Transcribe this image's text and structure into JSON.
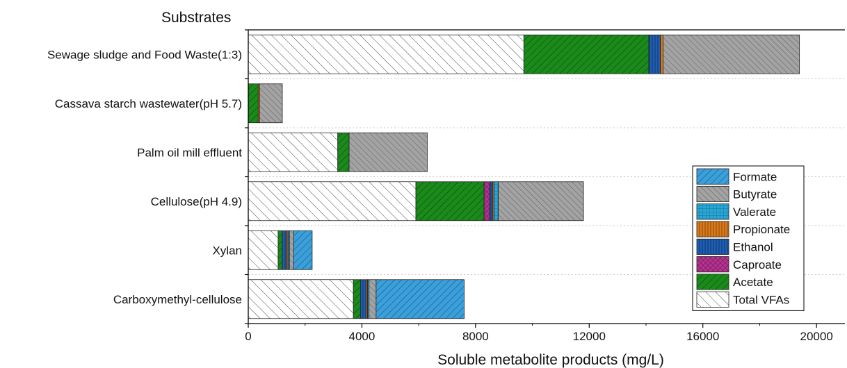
{
  "chart_data": {
    "type": "bar",
    "orientation": "horizontal",
    "stacked": true,
    "title": "",
    "ylabel": "Substrates",
    "xlabel": "Soluble metabolite products (mg/L)",
    "xlim": [
      0,
      21000
    ],
    "xticks": [
      0,
      4000,
      8000,
      12000,
      16000,
      20000
    ],
    "grid": "horizontal dotted",
    "legend_position": "right",
    "categories": [
      "Sewage sludge and Food Waste(1:3)",
      "Cassava starch wastewater(pH 5.7)",
      "Palm oil mill effluent",
      "Cellulose(pH 4.9)",
      "Xylan",
      "Carboxymethyl-cellulose"
    ],
    "stack_order": [
      "Total VFAs",
      "Acetate",
      "Caproate",
      "Ethanol",
      "Propionate",
      "Valerate",
      "Butyrate",
      "Formate"
    ],
    "legend_order": [
      "Formate",
      "Butyrate",
      "Valerate",
      "Propionate",
      "Ethanol",
      "Caproate",
      "Acetate",
      "Total VFAs"
    ],
    "series": [
      {
        "name": "Total VFAs",
        "color": "#ffffff",
        "pattern": "diag-sparse",
        "values": [
          9700,
          0,
          3150,
          5900,
          1050,
          3700
        ]
      },
      {
        "name": "Acetate",
        "color": "#1a8a1a",
        "pattern": "back-diag",
        "values": [
          4400,
          350,
          400,
          2400,
          150,
          250
        ]
      },
      {
        "name": "Caproate",
        "color": "#b5338f",
        "pattern": "cross",
        "values": [
          0,
          0,
          0,
          200,
          0,
          0
        ]
      },
      {
        "name": "Ethanol",
        "color": "#1f5fb3",
        "pattern": "vertical",
        "values": [
          400,
          0,
          0,
          100,
          150,
          200
        ]
      },
      {
        "name": "Propionate",
        "color": "#d77a1e",
        "pattern": "vertical",
        "values": [
          100,
          50,
          0,
          50,
          50,
          50
        ]
      },
      {
        "name": "Valerate",
        "color": "#29a6d6",
        "pattern": "grid",
        "values": [
          0,
          0,
          0,
          150,
          50,
          50
        ]
      },
      {
        "name": "Butyrate",
        "color": "#a3a3a3",
        "pattern": "diag-dense",
        "values": [
          4800,
          800,
          2750,
          3000,
          150,
          250
        ]
      },
      {
        "name": "Formate",
        "color": "#3b9fd9",
        "pattern": "back-diag",
        "values": [
          0,
          0,
          0,
          0,
          650,
          3100
        ]
      }
    ]
  }
}
